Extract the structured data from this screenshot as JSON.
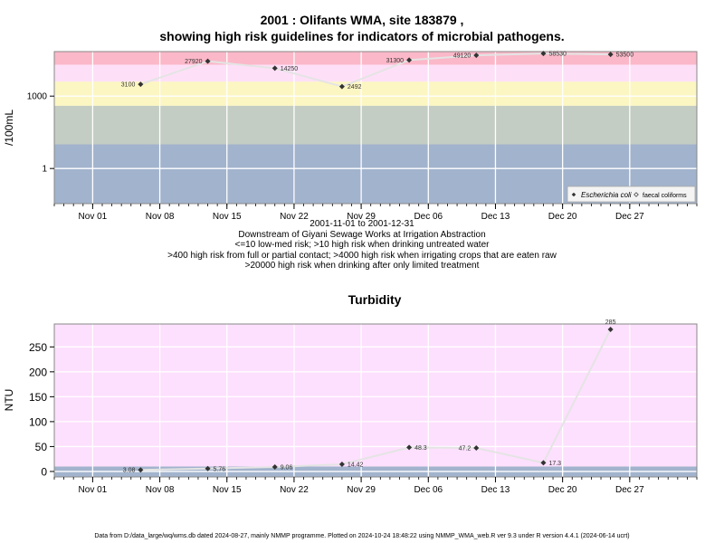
{
  "header": {
    "title_line1": "2001 : Olifants WMA, site 183879 ,",
    "title_line2": "showing high risk guidelines for indicators of microbial pathogens."
  },
  "subtitle_lines": [
    "2001-11-01 to 2001-12-31",
    "Downstream of Giyani Sewage Works at Irrigation Abstraction",
    "<=10 low-med risk; >10 high risk when drinking untreated water",
    ">400 high risk from full or partial contact; >4000 high risk when irrigating crops that are eaten raw",
    ">20000 high risk when drinking after only limited treatment"
  ],
  "footer": "Data from D:/data_large/wq/wms.db dated 2024-08-27, mainly NMMP programme. Plotted on 2024-10-24 18:48:22 using NMMP_WMA_web.R ver 9.3 under R version 4.4.1 (2024-06-14 ucrt)",
  "colors": {
    "band_blue": "#a2b3cd",
    "band_grey": "#c3cdc3",
    "band_yellow": "#fcf6c2",
    "band_pink_light": "#fde0f7",
    "band_red": "#fbb8c8",
    "turbidity_bg": "#fde0fd",
    "turbidity_low": "#a2b3cd",
    "line": "#e4e4e4",
    "point": "#333333"
  },
  "chart_data": [
    {
      "type": "line",
      "ylabel": "/100mL",
      "yscale": "log",
      "y_ticks": [
        {
          "value": 1,
          "label": "1"
        },
        {
          "value": 1000,
          "label": "1000"
        }
      ],
      "x_ticks": [
        "Nov 01",
        "Nov 08",
        "Nov 15",
        "Nov 22",
        "Nov 29",
        "Dec 06",
        "Dec 13",
        "Dec 20",
        "Dec 27"
      ],
      "x_tick_dates": [
        "2001-11-01",
        "2001-11-08",
        "2001-11-15",
        "2001-11-22",
        "2001-11-29",
        "2001-12-06",
        "2001-12-13",
        "2001-12-20",
        "2001-12-27"
      ],
      "xlim": [
        "2001-10-28",
        "2002-01-03"
      ],
      "ylim": [
        0.035,
        70000
      ],
      "risk_bands": [
        {
          "from": 0.035,
          "to": 10,
          "color": "#a2b3cd"
        },
        {
          "from": 10,
          "to": 400,
          "color": "#c3cdc3"
        },
        {
          "from": 400,
          "to": 4000,
          "color": "#fcf6c2"
        },
        {
          "from": 4000,
          "to": 20000,
          "color": "#fde0f7"
        },
        {
          "from": 20000,
          "to": 70000,
          "color": "#fbb8c8"
        }
      ],
      "legend": {
        "placement": "bottom-right",
        "entries": [
          {
            "label": "Escherichia coli",
            "italic": true,
            "marker": "filled-diamond"
          },
          {
            "label": "faecal coliforms",
            "italic": false,
            "marker": "open-diamond"
          }
        ]
      },
      "series": [
        {
          "name": "Escherichia coli",
          "points": [
            {
              "x": "2001-11-06",
              "y": 3100,
              "label": "3100",
              "label_side": "left"
            },
            {
              "x": "2001-11-13",
              "y": 27920,
              "label": "27920",
              "label_side": "left"
            },
            {
              "x": "2001-11-20",
              "y": 14250,
              "label": "14250",
              "label_side": "right"
            },
            {
              "x": "2001-11-27",
              "y": 2492,
              "label": "2492",
              "label_side": "right"
            },
            {
              "x": "2001-12-04",
              "y": 31300,
              "label": "31300",
              "label_side": "left"
            },
            {
              "x": "2001-12-11",
              "y": 49120,
              "label": "49120",
              "label_side": "left"
            },
            {
              "x": "2001-12-18",
              "y": 58530,
              "label": "58530",
              "label_side": "right"
            },
            {
              "x": "2001-12-25",
              "y": 53500,
              "label": "53500",
              "label_side": "right"
            }
          ]
        }
      ]
    },
    {
      "type": "line",
      "title": "Turbidity",
      "ylabel": "NTU",
      "y_ticks": [
        0,
        50,
        100,
        150,
        200,
        250
      ],
      "x_ticks": [
        "Nov 01",
        "Nov 08",
        "Nov 15",
        "Nov 22",
        "Nov 29",
        "Dec 06",
        "Dec 13",
        "Dec 20",
        "Dec 27"
      ],
      "x_tick_dates": [
        "2001-11-01",
        "2001-11-08",
        "2001-11-15",
        "2001-11-22",
        "2001-11-29",
        "2001-12-06",
        "2001-12-13",
        "2001-12-20",
        "2001-12-27"
      ],
      "xlim": [
        "2001-10-28",
        "2002-01-03"
      ],
      "ylim": [
        -11,
        296
      ],
      "bands": [
        {
          "from": -11,
          "to": 10,
          "color": "#a2b3cd"
        },
        {
          "from": 10,
          "to": 296,
          "color": "#fde0fd"
        }
      ],
      "series": [
        {
          "name": "Turbidity",
          "points": [
            {
              "x": "2001-11-06",
              "y": 3.08,
              "label": "3.08",
              "label_side": "left"
            },
            {
              "x": "2001-11-13",
              "y": 5.76,
              "label": "5.76",
              "label_side": "right"
            },
            {
              "x": "2001-11-20",
              "y": 9.06,
              "label": "9.06",
              "label_side": "right"
            },
            {
              "x": "2001-11-27",
              "y": 14.42,
              "label": "14.42",
              "label_side": "right"
            },
            {
              "x": "2001-12-04",
              "y": 48.3,
              "label": "48.3",
              "label_side": "right"
            },
            {
              "x": "2001-12-11",
              "y": 47.2,
              "label": "47.2",
              "label_side": "left"
            },
            {
              "x": "2001-12-18",
              "y": 17.3,
              "label": "17.3",
              "label_side": "right"
            },
            {
              "x": "2001-12-25",
              "y": 285,
              "label": "285",
              "label_side": "above"
            }
          ]
        }
      ]
    }
  ]
}
